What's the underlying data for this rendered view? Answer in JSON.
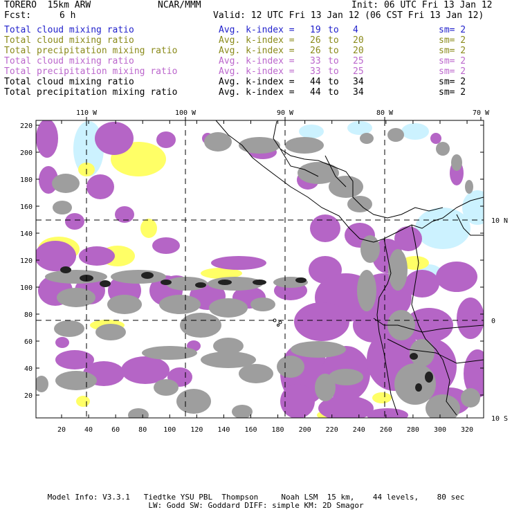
{
  "header": {
    "model": "TORERO  15km ARW",
    "org": "NCAR/MMM",
    "init": "Init: 06 UTC Fri 13 Jan 12",
    "fcst_label": "Fcst:",
    "fcst_value": "6 h",
    "valid": "Valid: 12 UTC Fri 13 Jan 12 (06 CST Fri 13 Jan 12)"
  },
  "legend": [
    {
      "field": "Total cloud mixing ratio",
      "stat": "Avg. k-index =",
      "from": "19",
      "to_word": "to",
      "to": "4",
      "sm": "sm= 2",
      "color": "#2222cc"
    },
    {
      "field": "Total cloud mixing ratio",
      "stat": "Avg. k-index =",
      "from": "26",
      "to_word": "to",
      "to": "20",
      "sm": "sm= 2",
      "color": "#8a8a1a"
    },
    {
      "field": "Total precipitation mixing ratio",
      "stat": "Avg. k-index =",
      "from": "26",
      "to_word": "to",
      "to": "20",
      "sm": "sm= 2",
      "color": "#8a8a1a"
    },
    {
      "field": "Total cloud mixing ratio",
      "stat": "Avg. k-index =",
      "from": "33",
      "to_word": "to",
      "to": "25",
      "sm": "sm= 2",
      "color": "#bb66cc"
    },
    {
      "field": "Total precipitation mixing ratio",
      "stat": "Avg. k-index =",
      "from": "33",
      "to_word": "to",
      "to": "25",
      "sm": "sm= 2",
      "color": "#bb66cc"
    },
    {
      "field": "Total cloud mixing ratio",
      "stat": "Avg. k-index =",
      "from": "44",
      "to_word": "to",
      "to": "34",
      "sm": "sm= 2",
      "color": "#000000"
    },
    {
      "field": "Total precipitation mixing ratio",
      "stat": "Avg. k-index =",
      "from": "44",
      "to_word": "to",
      "to": "34",
      "sm": "sm= 2",
      "color": "#000000"
    }
  ],
  "map": {
    "lon_labels": [
      "110 W",
      "100 W",
      "90 W",
      "80 W",
      "70 W"
    ],
    "lat_labels": [
      "10 N",
      "0",
      "10 S"
    ],
    "y_ticks": [
      "20",
      "40",
      "60",
      "80",
      "100",
      "120",
      "140",
      "160",
      "180",
      "200",
      "220"
    ],
    "x_ticks": [
      "20",
      "40",
      "60",
      "80",
      "100",
      "120",
      "140",
      "160",
      "180",
      "200",
      "220",
      "240",
      "260",
      "280",
      "300",
      "320"
    ],
    "colors": {
      "yellow_cloud": "#ffff66",
      "cyan_cloud": "#ccf2ff",
      "purple_field": "#b565c6",
      "gray_field": "#9e9e9e",
      "dark_core": "#222222",
      "coastline": "#000000"
    }
  },
  "footer": {
    "line1": "Model Info: V3.3.1   Tiedtke YSU PBL  Thompson     Noah LSM  15 km,    44 levels,    80 sec",
    "line2": "LW: Godd SW: Goddard DIFF: simple KM: 2D Smagor"
  }
}
